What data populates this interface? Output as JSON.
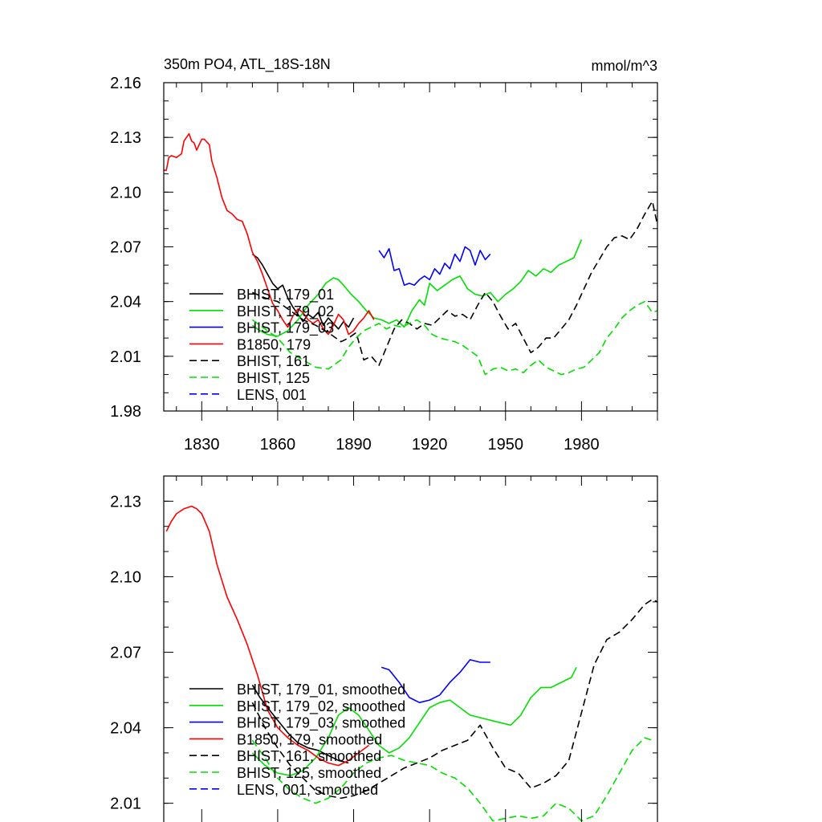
{
  "chart_data": [
    {
      "type": "line",
      "title": "350m PO4, ATL_18S-18N",
      "units": "mmol/m^3",
      "xlim": [
        1815,
        2010
      ],
      "ylim": [
        1.98,
        2.16
      ],
      "x_ticks": [
        "1830",
        "1860",
        "1890",
        "1920",
        "1950",
        "1980"
      ],
      "y_ticks": [
        "1.98",
        "2.01",
        "2.04",
        "2.07",
        "2.10",
        "2.13",
        "2.16"
      ],
      "legend_position": "bottom-left",
      "series": [
        {
          "name": "BHIST, 179_01",
          "color": "#000000",
          "dash": "solid",
          "x": [
            1850,
            1852,
            1854,
            1856,
            1858,
            1860,
            1862,
            1864,
            1866,
            1868,
            1870,
            1872,
            1874,
            1876,
            1878,
            1880,
            1882,
            1884,
            1886,
            1888,
            1890
          ],
          "y": [
            2.066,
            2.064,
            2.06,
            2.055,
            2.05,
            2.047,
            2.049,
            2.042,
            2.037,
            2.033,
            2.029,
            2.033,
            2.031,
            2.034,
            2.027,
            2.031,
            2.028,
            2.025,
            2.029,
            2.026,
            2.031
          ]
        },
        {
          "name": "BHIST, 179_02",
          "color": "#00e000",
          "dash": "solid",
          "x": [
            1850,
            1853,
            1856,
            1860,
            1864,
            1868,
            1872,
            1876,
            1879,
            1882,
            1884,
            1886,
            1889,
            1892,
            1895,
            1898,
            1901,
            1904,
            1907,
            1910,
            1913,
            1916,
            1918,
            1920,
            1923,
            1926,
            1929,
            1932,
            1935,
            1938,
            1941,
            1944,
            1947,
            1950,
            1953,
            1956,
            1959,
            1962,
            1965,
            1968,
            1971,
            1974,
            1977,
            1980
          ],
          "y": [
            2.027,
            2.024,
            2.022,
            2.021,
            2.024,
            2.03,
            2.038,
            2.044,
            2.05,
            2.053,
            2.052,
            2.049,
            2.044,
            2.04,
            2.035,
            2.031,
            2.03,
            2.028,
            2.03,
            2.026,
            2.035,
            2.041,
            2.038,
            2.05,
            2.046,
            2.049,
            2.052,
            2.054,
            2.047,
            2.044,
            2.043,
            2.045,
            2.04,
            2.044,
            2.047,
            2.051,
            2.057,
            2.054,
            2.058,
            2.056,
            2.06,
            2.062,
            2.064,
            2.074
          ]
        },
        {
          "name": "BHIST, 179_03",
          "color": "#0000ff",
          "dash": "solid",
          "x": [
            1900,
            1902,
            1904,
            1906,
            1908,
            1910,
            1912,
            1914,
            1916,
            1918,
            1920,
            1922,
            1924,
            1926,
            1928,
            1930,
            1932,
            1934,
            1936,
            1938,
            1940,
            1942,
            1944
          ],
          "y": [
            2.068,
            2.064,
            2.069,
            2.057,
            2.058,
            2.049,
            2.05,
            2.049,
            2.052,
            2.054,
            2.052,
            2.058,
            2.055,
            2.061,
            2.058,
            2.066,
            2.062,
            2.07,
            2.068,
            2.06,
            2.068,
            2.063,
            2.066
          ]
        },
        {
          "name": "B1850, 179",
          "color": "#ff0000",
          "dash": "solid",
          "x": [
            1815,
            1816,
            1817,
            1818,
            1820,
            1822,
            1823,
            1825,
            1826,
            1827,
            1828,
            1830,
            1831,
            1833,
            1834,
            1836,
            1838,
            1840,
            1842,
            1844,
            1846,
            1848,
            1850,
            1852,
            1854,
            1856,
            1858,
            1860,
            1862,
            1864,
            1866,
            1868,
            1870,
            1872,
            1874,
            1876,
            1878,
            1880,
            1882,
            1884,
            1886,
            1888,
            1890,
            1892,
            1894,
            1896,
            1898
          ],
          "y": [
            2.112,
            2.112,
            2.119,
            2.12,
            2.119,
            2.121,
            2.128,
            2.132,
            2.128,
            2.127,
            2.123,
            2.129,
            2.129,
            2.126,
            2.117,
            2.108,
            2.097,
            2.09,
            2.088,
            2.085,
            2.084,
            2.077,
            2.067,
            2.062,
            2.055,
            2.047,
            2.039,
            2.035,
            2.03,
            2.026,
            2.032,
            2.036,
            2.034,
            2.03,
            2.028,
            2.03,
            2.025,
            2.022,
            2.027,
            2.033,
            2.03,
            2.022,
            2.024,
            2.028,
            2.031,
            2.035,
            2.03
          ]
        },
        {
          "name": "BHIST, 161",
          "color": "#000000",
          "dash": "dashed",
          "x": [
            1850,
            1855,
            1860,
            1865,
            1870,
            1875,
            1880,
            1885,
            1888,
            1891,
            1894,
            1897,
            1900,
            1903,
            1906,
            1909,
            1912,
            1915,
            1918,
            1921,
            1924,
            1927,
            1930,
            1933,
            1936,
            1939,
            1942,
            1945,
            1948,
            1951,
            1954,
            1957,
            1960,
            1963,
            1966,
            1969,
            1972,
            1975,
            1978,
            1981,
            1984,
            1987,
            1990,
            1993,
            1996,
            1999,
            2002,
            2005,
            2008,
            2010
          ],
          "y": [
            2.045,
            2.042,
            2.04,
            2.035,
            2.03,
            2.027,
            2.023,
            2.018,
            2.02,
            2.023,
            2.008,
            2.01,
            2.005,
            2.015,
            2.025,
            2.03,
            2.028,
            2.025,
            2.028,
            2.027,
            2.031,
            2.035,
            2.032,
            2.033,
            2.03,
            2.038,
            2.045,
            2.04,
            2.032,
            2.025,
            2.028,
            2.02,
            2.012,
            2.015,
            2.02,
            2.02,
            2.025,
            2.03,
            2.038,
            2.047,
            2.056,
            2.063,
            2.07,
            2.075,
            2.076,
            2.074,
            2.08,
            2.088,
            2.095,
            2.082
          ]
        },
        {
          "name": "BHIST, 125",
          "color": "#00e000",
          "dash": "dashed",
          "x": [
            1850,
            1855,
            1860,
            1865,
            1870,
            1875,
            1880,
            1885,
            1888,
            1891,
            1894,
            1897,
            1900,
            1903,
            1906,
            1909,
            1912,
            1915,
            1918,
            1921,
            1924,
            1927,
            1930,
            1933,
            1936,
            1939,
            1942,
            1945,
            1948,
            1951,
            1954,
            1957,
            1960,
            1963,
            1966,
            1969,
            1972,
            1975,
            1978,
            1981,
            1984,
            1987,
            1990,
            1993,
            1996,
            1999,
            2002,
            2005,
            2008,
            2010
          ],
          "y": [
            2.03,
            2.025,
            2.02,
            2.012,
            2.008,
            2.004,
            2.003,
            2.008,
            2.015,
            2.02,
            2.024,
            2.026,
            2.028,
            2.025,
            2.027,
            2.026,
            2.028,
            2.03,
            2.027,
            2.022,
            2.02,
            2.019,
            2.018,
            2.016,
            2.013,
            2.01,
            2.0,
            2.003,
            2.004,
            2.002,
            2.003,
            2.001,
            2.005,
            2.008,
            2.004,
            2.002,
            2.0,
            2.001,
            2.003,
            2.004,
            2.008,
            2.012,
            2.02,
            2.025,
            2.031,
            2.035,
            2.038,
            2.04,
            2.034,
            2.035
          ]
        }
      ],
      "legend_extra": [
        {
          "name": "LENS, 001",
          "color": "#0000ff",
          "dash": "dashed"
        }
      ]
    },
    {
      "type": "line",
      "xlim": [
        1815,
        2010
      ],
      "ylim": [
        2.0,
        2.14
      ],
      "y_ticks": [
        "2.01",
        "2.04",
        "2.07",
        "2.10",
        "2.13"
      ],
      "legend_position": "bottom-left",
      "series": [
        {
          "name": "BHIST, 179_01, smoothed",
          "color": "#000000",
          "dash": "solid",
          "x": [
            1850,
            1853,
            1856,
            1860,
            1864,
            1868,
            1872,
            1876,
            1880,
            1884,
            1888
          ],
          "y": [
            2.057,
            2.052,
            2.048,
            2.043,
            2.038,
            2.034,
            2.032,
            2.031,
            2.029,
            2.027,
            2.026
          ]
        },
        {
          "name": "BHIST, 179_02, smoothed",
          "color": "#00e000",
          "dash": "solid",
          "x": [
            1850,
            1855,
            1860,
            1865,
            1870,
            1875,
            1880,
            1884,
            1888,
            1892,
            1896,
            1900,
            1904,
            1908,
            1912,
            1916,
            1920,
            1924,
            1928,
            1932,
            1936,
            1940,
            1944,
            1948,
            1952,
            1956,
            1960,
            1964,
            1968,
            1972,
            1976,
            1978
          ],
          "y": [
            2.03,
            2.025,
            2.022,
            2.021,
            2.023,
            2.028,
            2.036,
            2.045,
            2.048,
            2.045,
            2.039,
            2.033,
            2.03,
            2.032,
            2.036,
            2.042,
            2.048,
            2.05,
            2.051,
            2.048,
            2.045,
            2.044,
            2.043,
            2.042,
            2.041,
            2.045,
            2.052,
            2.056,
            2.056,
            2.058,
            2.06,
            2.064
          ]
        },
        {
          "name": "BHIST, 179_03, smoothed",
          "color": "#0000ff",
          "dash": "solid",
          "x": [
            1901,
            1904,
            1908,
            1912,
            1916,
            1920,
            1924,
            1928,
            1932,
            1936,
            1940,
            1944
          ],
          "y": [
            2.064,
            2.063,
            2.058,
            2.052,
            2.05,
            2.051,
            2.053,
            2.058,
            2.062,
            2.067,
            2.066,
            2.066
          ]
        },
        {
          "name": "B1850, 179, smoothed",
          "color": "#ff0000",
          "dash": "solid",
          "x": [
            1816,
            1818,
            1820,
            1823,
            1826,
            1828,
            1830,
            1833,
            1836,
            1840,
            1844,
            1848,
            1852,
            1856,
            1860,
            1864,
            1868,
            1872,
            1876,
            1880,
            1884,
            1888,
            1892,
            1896
          ],
          "y": [
            2.118,
            2.122,
            2.125,
            2.127,
            2.128,
            2.127,
            2.125,
            2.118,
            2.105,
            2.092,
            2.083,
            2.073,
            2.061,
            2.047,
            2.04,
            2.036,
            2.033,
            2.031,
            2.028,
            2.026,
            2.025,
            2.027,
            2.03,
            2.033
          ]
        },
        {
          "name": "BHIST, 161, smoothed",
          "color": "#000000",
          "dash": "dashed",
          "x": [
            1850,
            1855,
            1860,
            1865,
            1870,
            1875,
            1880,
            1885,
            1890,
            1895,
            1900,
            1905,
            1910,
            1915,
            1920,
            1925,
            1930,
            1935,
            1940,
            1945,
            1950,
            1955,
            1960,
            1965,
            1970,
            1975,
            1980,
            1985,
            1990,
            1995,
            2000,
            2005,
            2008,
            2010
          ],
          "y": [
            2.05,
            2.04,
            2.032,
            2.025,
            2.02,
            2.015,
            2.013,
            2.012,
            2.013,
            2.015,
            2.018,
            2.021,
            2.024,
            2.026,
            2.028,
            2.031,
            2.033,
            2.035,
            2.041,
            2.032,
            2.024,
            2.022,
            2.016,
            2.018,
            2.021,
            2.027,
            2.046,
            2.065,
            2.075,
            2.078,
            2.083,
            2.089,
            2.091,
            2.09
          ]
        },
        {
          "name": "BHIST, 125, smoothed",
          "color": "#00e000",
          "dash": "dashed",
          "x": [
            1850,
            1855,
            1860,
            1865,
            1870,
            1875,
            1880,
            1885,
            1890,
            1895,
            1900,
            1905,
            1910,
            1915,
            1920,
            1925,
            1930,
            1935,
            1940,
            1945,
            1950,
            1955,
            1960,
            1965,
            1970,
            1975,
            1980,
            1985,
            1990,
            1995,
            2000,
            2005,
            2008
          ],
          "y": [
            2.035,
            2.028,
            2.02,
            2.015,
            2.012,
            2.01,
            2.012,
            2.016,
            2.022,
            2.026,
            2.028,
            2.029,
            2.027,
            2.026,
            2.025,
            2.022,
            2.02,
            2.016,
            2.01,
            2.003,
            2.004,
            2.005,
            2.004,
            2.005,
            2.01,
            2.008,
            2.003,
            2.005,
            2.013,
            2.022,
            2.031,
            2.036,
            2.035
          ]
        }
      ],
      "legend_extra": [
        {
          "name": "LENS, 001, smoothed",
          "color": "#0000ff",
          "dash": "dashed"
        }
      ]
    }
  ]
}
